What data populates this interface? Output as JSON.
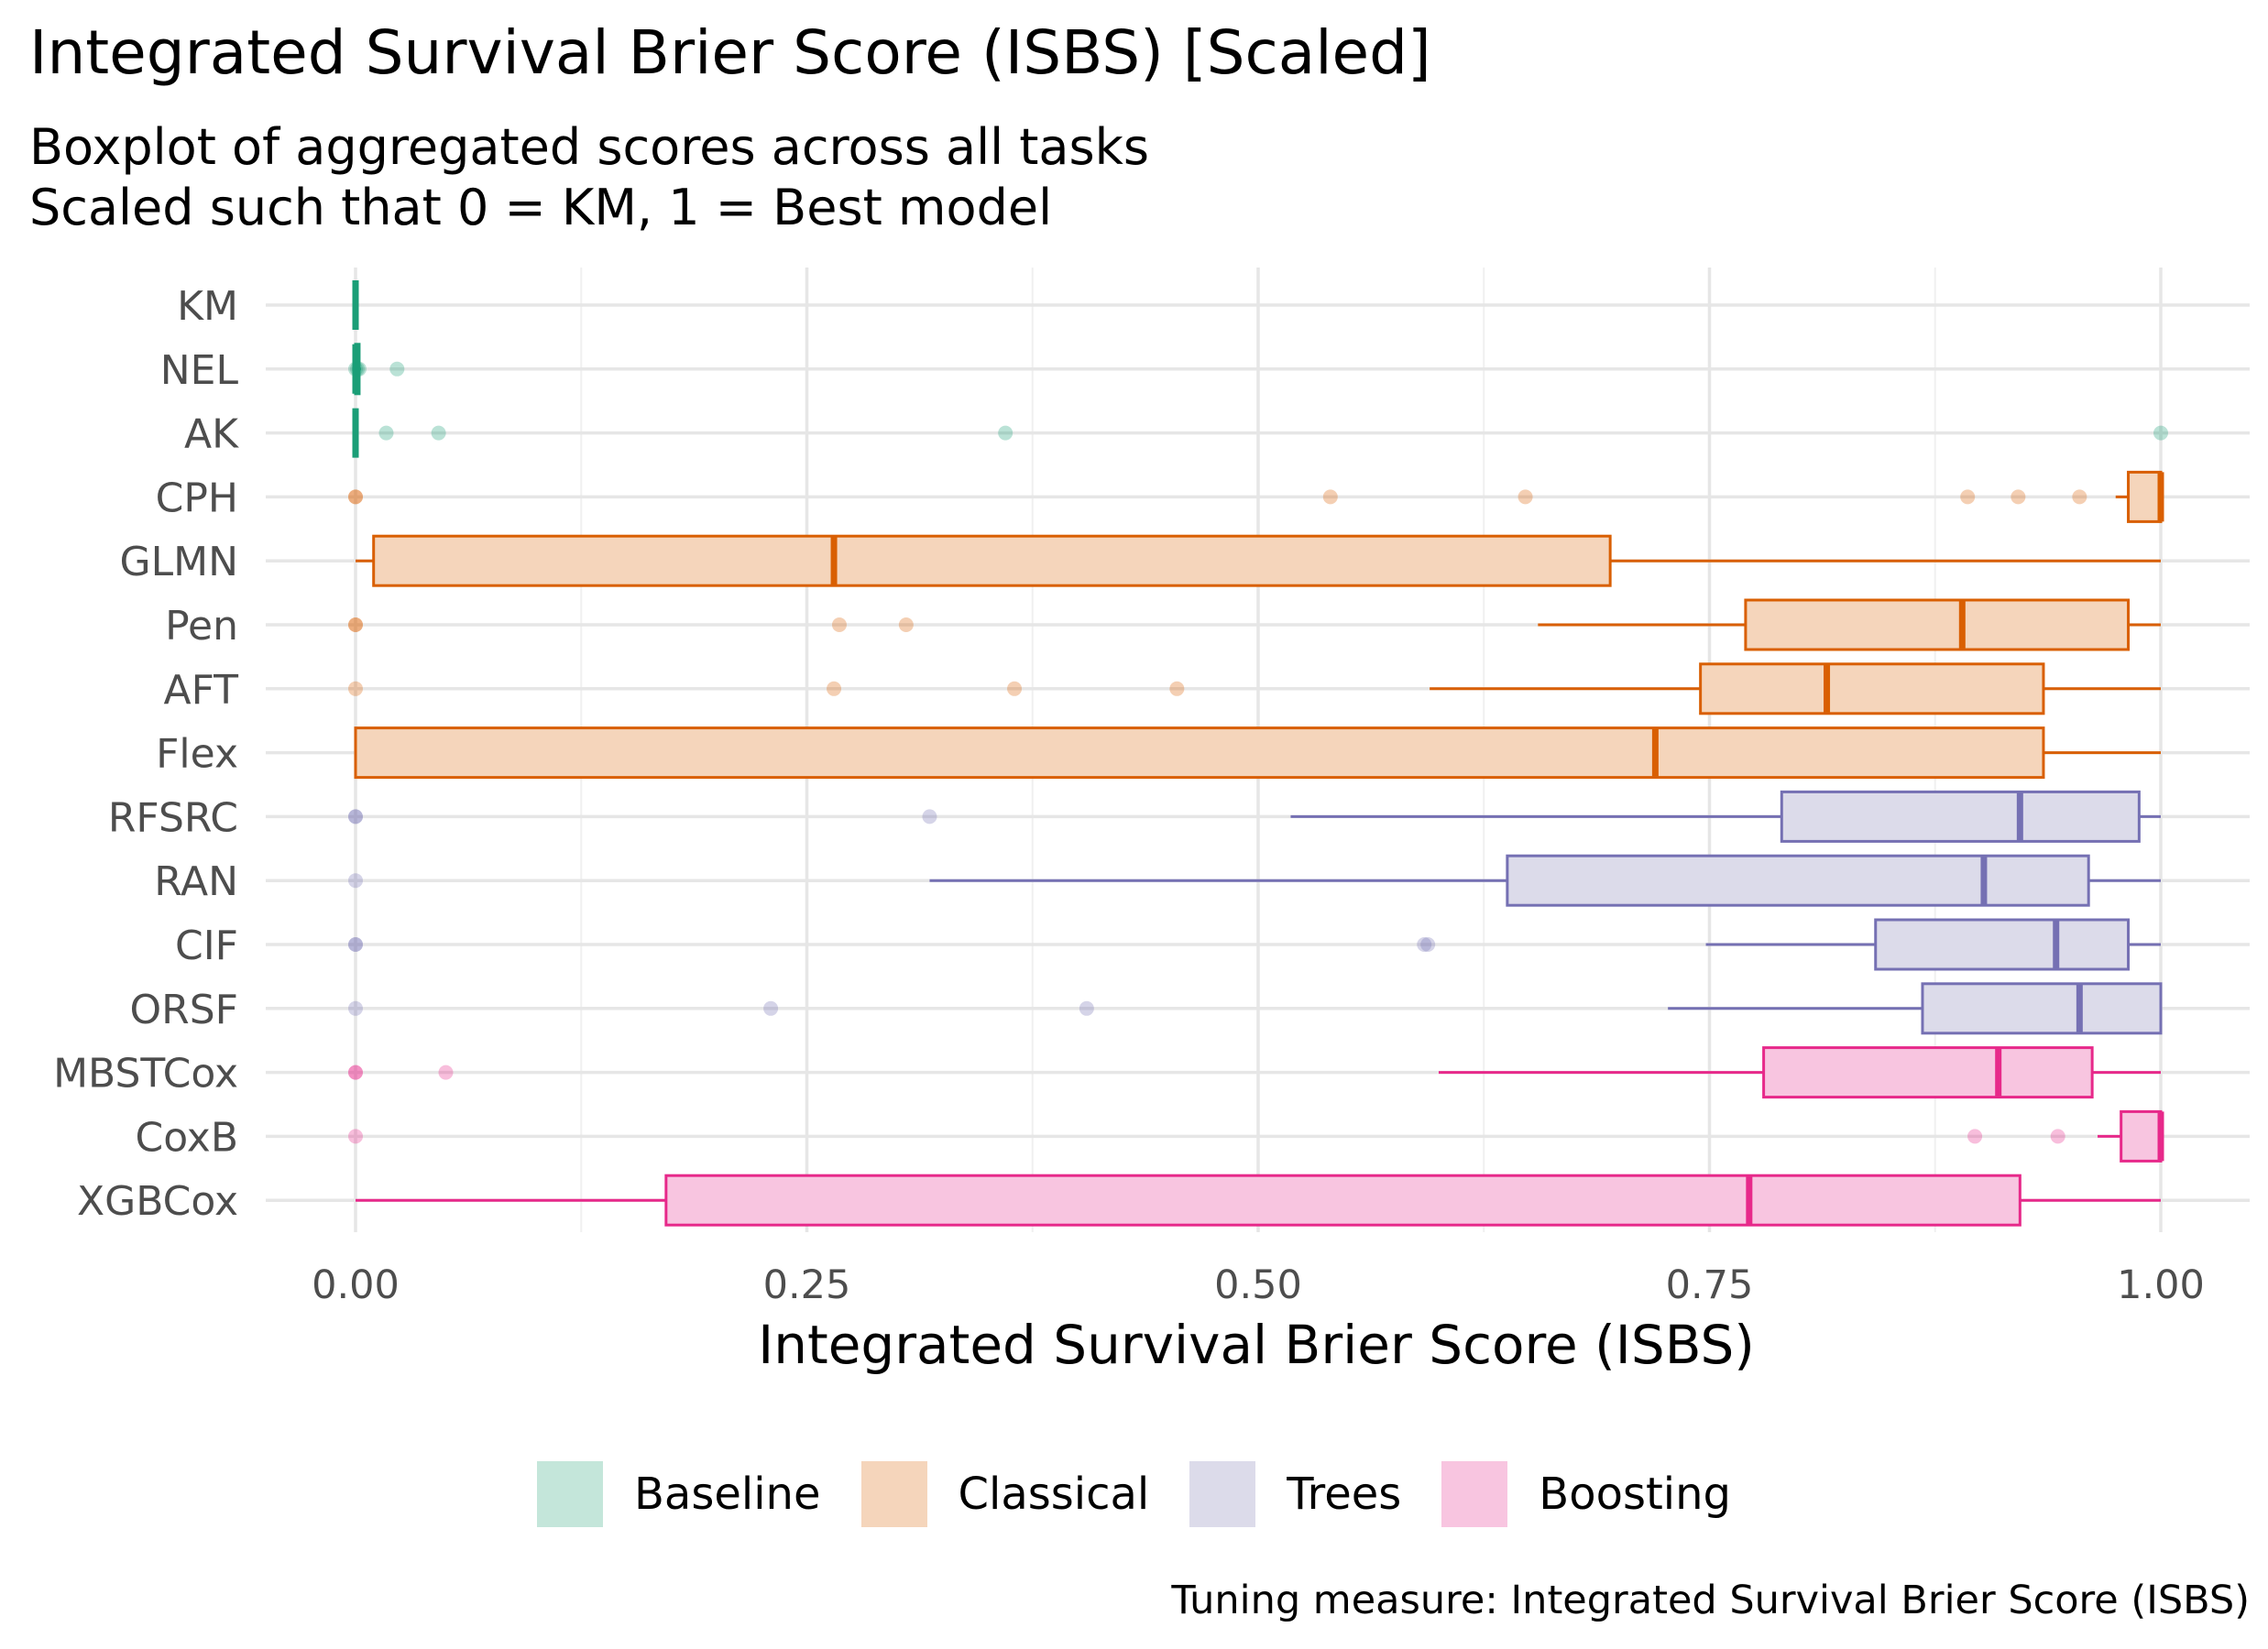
{
  "title": "Integrated Survival Brier Score (ISBS) [Scaled]",
  "subtitle_line1": "Boxplot of aggregated scores across all tasks",
  "subtitle_line2": "Scaled such that 0 = KM, 1 = Best model",
  "caption": "Tuning measure: Integrated Survival Brier Score (ISBS)",
  "colors": {
    "Baseline": {
      "line": "#1b9e77",
      "fill": "#c4e6da"
    },
    "Classical": {
      "line": "#d95f02",
      "fill": "#f5d5bb"
    },
    "Trees": {
      "line": "#7570b3",
      "fill": "#dcdbea"
    },
    "Boosting": {
      "line": "#e7298a",
      "fill": "#f8c5e0"
    }
  },
  "legend": [
    "Baseline",
    "Classical",
    "Trees",
    "Boosting"
  ],
  "chart_data": {
    "type": "boxplot",
    "orientation": "horizontal",
    "xlabel": "Integrated Survival Brier Score (ISBS)",
    "xlim": [
      0,
      1
    ],
    "xticks": [
      0,
      0.25,
      0.5,
      0.75,
      1
    ],
    "xtick_labels": [
      "0.00",
      "0.25",
      "0.50",
      "0.75",
      "1.00"
    ],
    "grid": true,
    "legend_position": "bottom",
    "categories": [
      "KM",
      "NEL",
      "AK",
      "CPH",
      "GLMN",
      "Pen",
      "AFT",
      "Flex",
      "RFSRC",
      "RAN",
      "CIF",
      "ORSF",
      "MBSTCox",
      "CoxB",
      "XGBCox"
    ],
    "boxes": [
      {
        "label": "KM",
        "group": "Baseline",
        "whisker_low": 0,
        "q1": 0,
        "median": 0,
        "q3": 0,
        "whisker_high": 0,
        "outliers": []
      },
      {
        "label": "NEL",
        "group": "Baseline",
        "whisker_low": 0,
        "q1": 0,
        "median": 0,
        "q3": 0.002,
        "whisker_high": 0.003,
        "outliers": [
          0.0,
          0.001,
          0.002,
          0.023
        ]
      },
      {
        "label": "AK",
        "group": "Baseline",
        "whisker_low": 0,
        "q1": 0,
        "median": 0,
        "q3": 0,
        "whisker_high": 0,
        "outliers": [
          0.017,
          0.046,
          0.36,
          1.0
        ]
      },
      {
        "label": "CPH",
        "group": "Classical",
        "whisker_low": 0.975,
        "q1": 0.982,
        "median": 1.0,
        "q3": 1.0,
        "whisker_high": 1.0,
        "outliers": [
          0.0,
          0.0,
          0.54,
          0.648,
          0.893,
          0.921,
          0.955
        ]
      },
      {
        "label": "GLMN",
        "group": "Classical",
        "whisker_low": 0.0,
        "q1": 0.01,
        "median": 0.265,
        "q3": 0.695,
        "whisker_high": 1.0,
        "outliers": []
      },
      {
        "label": "Pen",
        "group": "Classical",
        "whisker_low": 0.655,
        "q1": 0.77,
        "median": 0.89,
        "q3": 0.982,
        "whisker_high": 1.0,
        "outliers": [
          0.0,
          0.0,
          0.268,
          0.305
        ]
      },
      {
        "label": "AFT",
        "group": "Classical",
        "whisker_low": 0.595,
        "q1": 0.745,
        "median": 0.815,
        "q3": 0.935,
        "whisker_high": 1.0,
        "outliers": [
          0.0,
          0.265,
          0.365,
          0.455
        ]
      },
      {
        "label": "Flex",
        "group": "Classical",
        "whisker_low": 0.0,
        "q1": 0.0,
        "median": 0.72,
        "q3": 0.935,
        "whisker_high": 1.0,
        "outliers": []
      },
      {
        "label": "RFSRC",
        "group": "Trees",
        "whisker_low": 0.518,
        "q1": 0.79,
        "median": 0.922,
        "q3": 0.988,
        "whisker_high": 1.0,
        "outliers": [
          0.0,
          0.0,
          0.318
        ]
      },
      {
        "label": "RAN",
        "group": "Trees",
        "whisker_low": 0.318,
        "q1": 0.638,
        "median": 0.902,
        "q3": 0.96,
        "whisker_high": 1.0,
        "outliers": [
          0.0
        ]
      },
      {
        "label": "CIF",
        "group": "Trees",
        "whisker_low": 0.748,
        "q1": 0.842,
        "median": 0.942,
        "q3": 0.982,
        "whisker_high": 1.0,
        "outliers": [
          0.0,
          0.0,
          0.592,
          0.594
        ]
      },
      {
        "label": "ORSF",
        "group": "Trees",
        "whisker_low": 0.727,
        "q1": 0.868,
        "median": 0.955,
        "q3": 1.0,
        "whisker_high": 1.0,
        "outliers": [
          0.0,
          0.23,
          0.405
        ]
      },
      {
        "label": "MBSTCox",
        "group": "Boosting",
        "whisker_low": 0.6,
        "q1": 0.78,
        "median": 0.91,
        "q3": 0.962,
        "whisker_high": 1.0,
        "outliers": [
          0.0,
          0.0,
          0.05
        ]
      },
      {
        "label": "CoxB",
        "group": "Boosting",
        "whisker_low": 0.965,
        "q1": 0.978,
        "median": 1.0,
        "q3": 1.0,
        "whisker_high": 1.0,
        "outliers": [
          0.0,
          0.897,
          0.943
        ]
      },
      {
        "label": "XGBCox",
        "group": "Boosting",
        "whisker_low": 0.0,
        "q1": 0.172,
        "median": 0.772,
        "q3": 0.922,
        "whisker_high": 1.0,
        "outliers": []
      }
    ]
  }
}
